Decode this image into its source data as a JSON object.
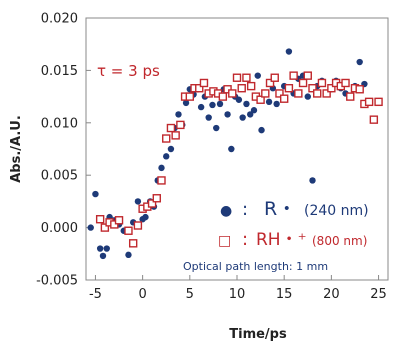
{
  "chart_data": {
    "type": "scatter",
    "xlabel": "Time/ps",
    "ylabel": "Abs./A.U.",
    "xlim": [
      -6,
      26
    ],
    "ylim": [
      -0.005,
      0.02
    ],
    "x_ticks": [
      "-5",
      "0",
      "5",
      "10",
      "15",
      "20",
      "25"
    ],
    "y_ticks": [
      "-0.005",
      "0.000",
      "0.005",
      "0.010",
      "0.015",
      "0.020"
    ],
    "grid": false,
    "annotations": [
      {
        "text": "τ = 3 ps",
        "color": "#c0282d"
      },
      {
        "text": "Optical path length: 1 mm",
        "color": "#1e3a78"
      }
    ],
    "legend": {
      "placement": "bottom-right",
      "entries": [
        {
          "marker": "●",
          "separator": ":",
          "label": "R・",
          "wavelength": "(240 nm)",
          "color": "#1e3a78"
        },
        {
          "marker": "□",
          "separator": ":",
          "label": "RH・⁺",
          "wavelength": "(800 nm)",
          "color": "#c0282d"
        }
      ]
    },
    "series": [
      {
        "name": "R・(240 nm)",
        "marker": "filled-circle",
        "color": "#1e3a78",
        "points": [
          [
            -5.5,
            0.0
          ],
          [
            -5.0,
            0.0032
          ],
          [
            -4.5,
            -0.002
          ],
          [
            -4.2,
            -0.0027
          ],
          [
            -3.8,
            -0.002
          ],
          [
            -3.5,
            0.001
          ],
          [
            -3.0,
            0.0007
          ],
          [
            -2.5,
            0.0003
          ],
          [
            -2.0,
            -0.0003
          ],
          [
            -1.5,
            -0.0026
          ],
          [
            -1.0,
            0.0005
          ],
          [
            -0.5,
            0.0025
          ],
          [
            0.0,
            0.0008
          ],
          [
            0.3,
            0.001
          ],
          [
            0.8,
            0.0025
          ],
          [
            1.2,
            0.002
          ],
          [
            1.6,
            0.0045
          ],
          [
            2.0,
            0.0057
          ],
          [
            2.5,
            0.0068
          ],
          [
            3.0,
            0.0075
          ],
          [
            3.4,
            0.0095
          ],
          [
            3.8,
            0.0108
          ],
          [
            4.2,
            0.0098
          ],
          [
            4.6,
            0.0119
          ],
          [
            5.0,
            0.0132
          ],
          [
            5.4,
            0.0127
          ],
          [
            5.8,
            0.0132
          ],
          [
            6.2,
            0.0115
          ],
          [
            6.6,
            0.0125
          ],
          [
            7.0,
            0.0105
          ],
          [
            7.4,
            0.0117
          ],
          [
            7.8,
            0.0095
          ],
          [
            8.2,
            0.0118
          ],
          [
            8.6,
            0.0132
          ],
          [
            9.0,
            0.0108
          ],
          [
            9.4,
            0.0075
          ],
          [
            9.8,
            0.0125
          ],
          [
            10.2,
            0.0122
          ],
          [
            10.6,
            0.0105
          ],
          [
            11.0,
            0.0118
          ],
          [
            11.4,
            0.0108
          ],
          [
            11.8,
            0.0112
          ],
          [
            12.2,
            0.0145
          ],
          [
            12.6,
            0.0093
          ],
          [
            13.0,
            0.0128
          ],
          [
            13.4,
            0.012
          ],
          [
            13.8,
            0.0133
          ],
          [
            14.2,
            0.0118
          ],
          [
            14.6,
            0.0128
          ],
          [
            15.0,
            0.0135
          ],
          [
            15.5,
            0.0168
          ],
          [
            16.0,
            0.0128
          ],
          [
            16.5,
            0.0142
          ],
          [
            17.0,
            0.0145
          ],
          [
            17.5,
            0.0125
          ],
          [
            18.0,
            0.0045
          ],
          [
            18.5,
            0.0135
          ],
          [
            19.0,
            0.014
          ],
          [
            19.5,
            0.0128
          ],
          [
            20.0,
            0.0132
          ],
          [
            20.5,
            0.014
          ],
          [
            21.0,
            0.0133
          ],
          [
            21.5,
            0.0128
          ],
          [
            22.0,
            0.0125
          ],
          [
            22.5,
            0.0135
          ],
          [
            23.0,
            0.0158
          ],
          [
            23.5,
            0.0137
          ],
          [
            24.0,
            0.012
          ]
        ]
      },
      {
        "name": "RH・⁺(800 nm)",
        "marker": "open-square",
        "color": "#c0282d",
        "points": [
          [
            -4.5,
            0.0008
          ],
          [
            -4.0,
            0.0
          ],
          [
            -3.5,
            0.0005
          ],
          [
            -3.0,
            0.0003
          ],
          [
            -2.5,
            0.0007
          ],
          [
            -1.5,
            -0.0003
          ],
          [
            -1.0,
            -0.0015
          ],
          [
            -0.5,
            0.0002
          ],
          [
            0.0,
            0.0018
          ],
          [
            0.5,
            0.002
          ],
          [
            1.0,
            0.0023
          ],
          [
            1.5,
            0.0028
          ],
          [
            2.0,
            0.0045
          ],
          [
            2.5,
            0.0085
          ],
          [
            3.0,
            0.0095
          ],
          [
            3.5,
            0.0088
          ],
          [
            4.0,
            0.0098
          ],
          [
            4.5,
            0.0125
          ],
          [
            5.0,
            0.0125
          ],
          [
            5.5,
            0.0133
          ],
          [
            6.0,
            0.0133
          ],
          [
            6.5,
            0.0138
          ],
          [
            7.0,
            0.0128
          ],
          [
            7.5,
            0.013
          ],
          [
            8.0,
            0.0128
          ],
          [
            8.5,
            0.0125
          ],
          [
            9.0,
            0.0132
          ],
          [
            9.5,
            0.0128
          ],
          [
            10.0,
            0.0143
          ],
          [
            10.5,
            0.0133
          ],
          [
            11.0,
            0.0143
          ],
          [
            11.5,
            0.0135
          ],
          [
            12.0,
            0.0125
          ],
          [
            12.5,
            0.0122
          ],
          [
            13.0,
            0.0128
          ],
          [
            13.5,
            0.0138
          ],
          [
            14.0,
            0.0143
          ],
          [
            14.5,
            0.0128
          ],
          [
            15.0,
            0.0123
          ],
          [
            15.5,
            0.0133
          ],
          [
            16.0,
            0.0145
          ],
          [
            16.5,
            0.0128
          ],
          [
            17.0,
            0.0138
          ],
          [
            17.5,
            0.0145
          ],
          [
            18.0,
            0.0133
          ],
          [
            18.5,
            0.0128
          ],
          [
            19.0,
            0.0138
          ],
          [
            19.5,
            0.0128
          ],
          [
            20.0,
            0.0133
          ],
          [
            20.5,
            0.0138
          ],
          [
            21.0,
            0.0135
          ],
          [
            21.5,
            0.0138
          ],
          [
            22.0,
            0.0125
          ],
          [
            22.5,
            0.0133
          ],
          [
            23.0,
            0.0132
          ],
          [
            23.5,
            0.0118
          ],
          [
            24.0,
            0.012
          ],
          [
            24.5,
            0.0103
          ],
          [
            25.0,
            0.012
          ]
        ]
      }
    ]
  }
}
